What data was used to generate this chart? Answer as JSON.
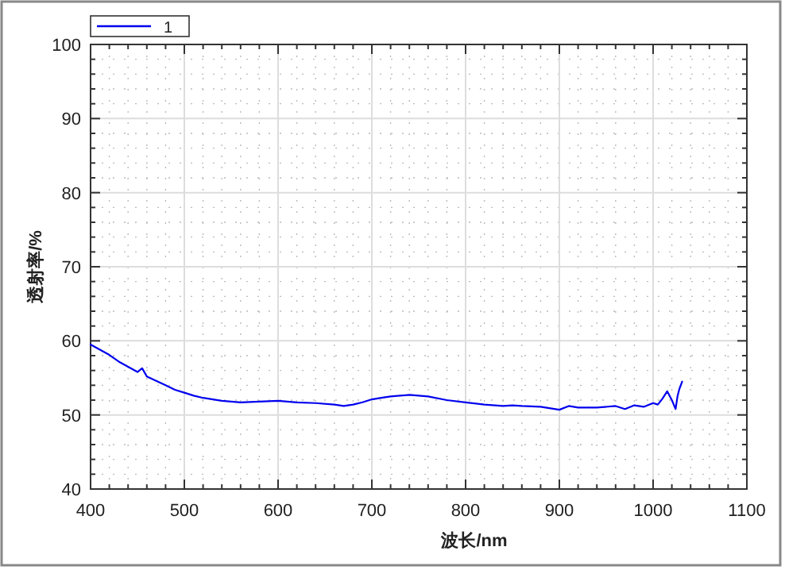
{
  "chart_data": {
    "type": "line",
    "xlabel": "波长/nm",
    "ylabel": "透射率/%",
    "xlim": [
      400,
      1100
    ],
    "ylim": [
      40,
      100
    ],
    "xticks": [
      400,
      500,
      600,
      700,
      800,
      900,
      1000,
      1100
    ],
    "yticks": [
      40,
      50,
      60,
      70,
      80,
      90,
      100
    ],
    "grid": true,
    "legend": "top left",
    "marker": "none",
    "line_style": "solid",
    "series": [
      {
        "name": "1",
        "color": "#0000ee",
        "x": [
          400,
          410,
          420,
          430,
          440,
          450,
          455,
          460,
          470,
          480,
          490,
          500,
          510,
          520,
          540,
          560,
          580,
          600,
          620,
          640,
          660,
          670,
          680,
          690,
          700,
          710,
          720,
          730,
          740,
          750,
          760,
          780,
          800,
          820,
          840,
          850,
          860,
          880,
          900,
          910,
          920,
          940,
          960,
          970,
          980,
          990,
          1000,
          1005,
          1010,
          1015,
          1020,
          1024,
          1026,
          1028,
          1031
        ],
        "values": [
          59.5,
          58.8,
          58.1,
          57.2,
          56.5,
          55.8,
          56.3,
          55.2,
          54.6,
          54.0,
          53.4,
          53.0,
          52.6,
          52.3,
          51.9,
          51.7,
          51.8,
          51.9,
          51.7,
          51.6,
          51.4,
          51.2,
          51.4,
          51.7,
          52.1,
          52.3,
          52.5,
          52.6,
          52.7,
          52.6,
          52.5,
          52.0,
          51.7,
          51.4,
          51.2,
          51.3,
          51.2,
          51.1,
          50.7,
          51.2,
          51.0,
          51.0,
          51.2,
          50.8,
          51.3,
          51.1,
          51.6,
          51.4,
          52.2,
          53.2,
          52.0,
          50.8,
          52.5,
          53.5,
          54.5
        ]
      }
    ]
  }
}
